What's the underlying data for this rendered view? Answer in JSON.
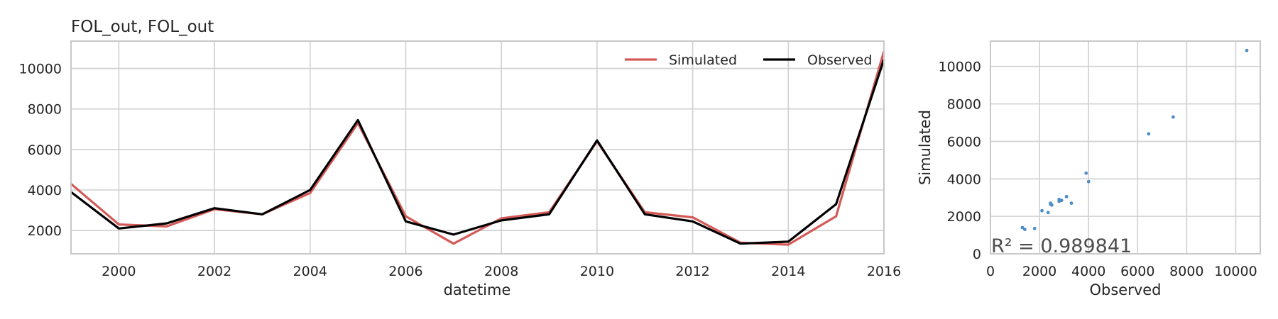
{
  "chart_data": [
    {
      "type": "line",
      "title": "FOL_out, FOL_out",
      "xlabel": "datetime",
      "ylabel": "",
      "xlim": [
        1999,
        2016
      ],
      "ylim": [
        850,
        11350
      ],
      "x": [
        1999,
        2000,
        2001,
        2002,
        2003,
        2004,
        2005,
        2006,
        2007,
        2008,
        2009,
        2010,
        2011,
        2012,
        2013,
        2014,
        2015,
        2016
      ],
      "xticks": [
        2000,
        2002,
        2004,
        2006,
        2008,
        2010,
        2012,
        2014,
        2016
      ],
      "yticks": [
        2000,
        4000,
        6000,
        8000,
        10000
      ],
      "grid": true,
      "legend_position": "top-right",
      "series": [
        {
          "name": "Simulated",
          "color": "#d45a57",
          "values": [
            4300,
            2300,
            2200,
            3050,
            2800,
            3850,
            7300,
            2700,
            1350,
            2600,
            2900,
            6400,
            2900,
            2650,
            1400,
            1300,
            2700,
            10850
          ]
        },
        {
          "name": "Observed",
          "color": "#000000",
          "values": [
            3900,
            2100,
            2350,
            3100,
            2800,
            4000,
            7450,
            2450,
            1800,
            2500,
            2800,
            6450,
            2800,
            2450,
            1350,
            1450,
            3300,
            10450
          ]
        }
      ]
    },
    {
      "type": "scatter",
      "title": "",
      "xlabel": "Observed",
      "ylabel": "Simulated",
      "xlim": [
        0,
        11000
      ],
      "ylim": [
        0,
        11350
      ],
      "xticks": [
        0,
        2000,
        4000,
        6000,
        8000,
        10000
      ],
      "yticks": [
        0,
        2000,
        4000,
        6000,
        8000,
        10000
      ],
      "grid": true,
      "point_color": "#4c8dc6",
      "annotation": "R² = 0.989841",
      "points": [
        {
          "x": 1300,
          "y": 1400
        },
        {
          "x": 1400,
          "y": 1300
        },
        {
          "x": 1800,
          "y": 1350
        },
        {
          "x": 2100,
          "y": 2300
        },
        {
          "x": 2350,
          "y": 2200
        },
        {
          "x": 2450,
          "y": 2650
        },
        {
          "x": 2500,
          "y": 2600
        },
        {
          "x": 2450,
          "y": 2700
        },
        {
          "x": 2800,
          "y": 2900
        },
        {
          "x": 2800,
          "y": 2800
        },
        {
          "x": 2900,
          "y": 2850
        },
        {
          "x": 3100,
          "y": 3050
        },
        {
          "x": 3300,
          "y": 2700
        },
        {
          "x": 3900,
          "y": 4300
        },
        {
          "x": 4000,
          "y": 3850
        },
        {
          "x": 6450,
          "y": 6400
        },
        {
          "x": 7450,
          "y": 7300
        },
        {
          "x": 10450,
          "y": 10850
        }
      ]
    }
  ]
}
